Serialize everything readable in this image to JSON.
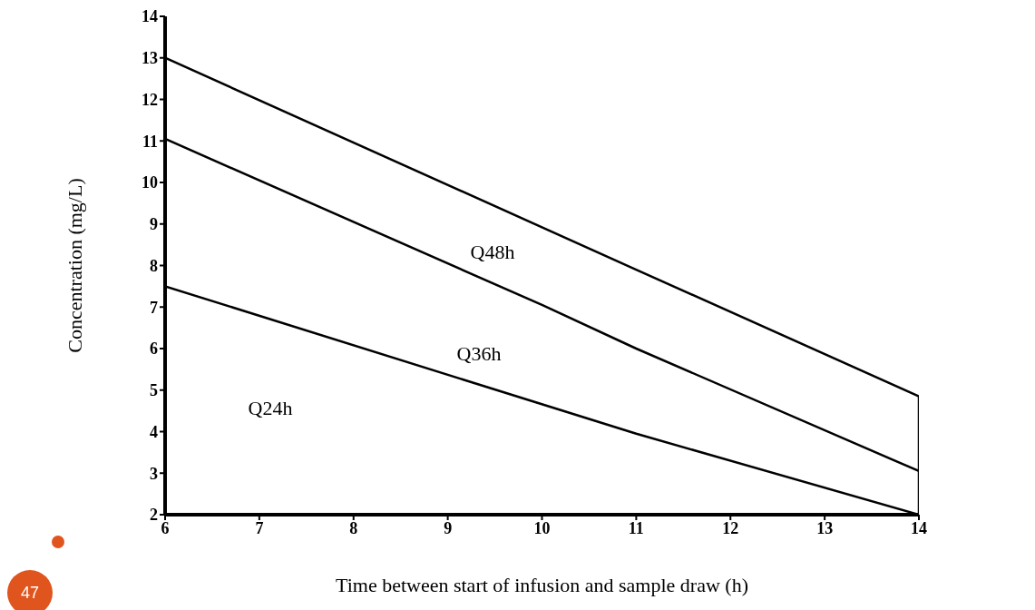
{
  "chart_data": {
    "type": "line",
    "xlabel": "Time between start of infusion and sample draw (h)",
    "ylabel": "Concentration (mg/L)",
    "xlim": [
      6,
      14
    ],
    "xticks": [
      6,
      7,
      8,
      9,
      10,
      11,
      12,
      13,
      14
    ],
    "ylim": [
      2,
      14
    ],
    "yticks": [
      2,
      3,
      4,
      5,
      6,
      7,
      8,
      9,
      10,
      11,
      12,
      13,
      14
    ],
    "series": [
      {
        "color": "#000000",
        "x": [
          6,
          11,
          14
        ],
        "values": [
          13,
          7.9,
          4.85
        ]
      },
      {
        "color": "#000000",
        "x": [
          6,
          10,
          11,
          14
        ],
        "values": [
          11.05,
          7.05,
          6,
          3.05
        ]
      },
      {
        "color": "#000000",
        "x": [
          6,
          11,
          14
        ],
        "values": [
          7.5,
          3.95,
          2
        ]
      },
      {
        "color": "#000000",
        "x": [
          14,
          14
        ],
        "values": [
          2,
          4.85
        ]
      }
    ],
    "annotations": [
      "Q48h",
      "Q36h",
      "Q24h",
      "47"
    ],
    "grid": false,
    "marker": "none",
    "line_style": "solid"
  }
}
